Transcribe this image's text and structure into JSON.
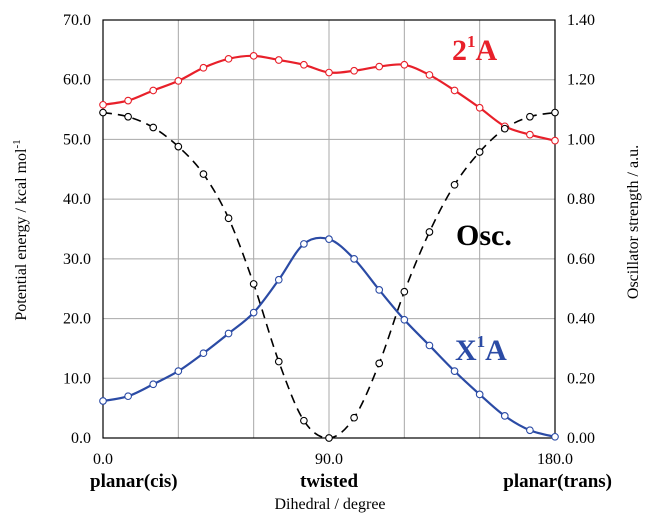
{
  "chart_data": {
    "type": "line",
    "xlabel": "Dihedral / degree",
    "ylabel_left": "Potential energy / kcal mol",
    "ylabel_left_sup": "-1",
    "ylabel_right": "Oscillator strength / a.u.",
    "x_ticks": [
      "0.0",
      "90.0",
      "180.0"
    ],
    "x_tick_values": [
      0,
      90,
      180
    ],
    "x_category_labels": [
      "planar(cis)",
      "twisted",
      "planar(trans)"
    ],
    "xlim": [
      0,
      180
    ],
    "ylim_left": [
      0,
      70
    ],
    "ylim_right": [
      0,
      1.4
    ],
    "y_left_ticks": [
      "0.0",
      "10.0",
      "20.0",
      "30.0",
      "40.0",
      "50.0",
      "60.0",
      "70.0"
    ],
    "y_right_ticks": [
      "0.00",
      "0.20",
      "0.40",
      "0.60",
      "0.80",
      "1.00",
      "1.20",
      "1.40"
    ],
    "grid": true,
    "series": [
      {
        "name": "2",
        "name_sup": "1",
        "name_tail": "A",
        "axis": "left",
        "color": "#e8202a",
        "dashed": false,
        "x": [
          0,
          10,
          20,
          30,
          40,
          50,
          60,
          70,
          80,
          90,
          100,
          110,
          120,
          130,
          140,
          150,
          160,
          170,
          180
        ],
        "y": [
          55.8,
          56.5,
          58.2,
          59.8,
          62.0,
          63.5,
          64.0,
          63.3,
          62.5,
          61.2,
          61.5,
          62.2,
          62.5,
          60.8,
          58.2,
          55.3,
          52.2,
          50.8,
          49.8
        ]
      },
      {
        "name": "Osc.",
        "axis": "right",
        "color": "#000000",
        "dashed": true,
        "x": [
          0,
          10,
          20,
          30,
          40,
          50,
          60,
          70,
          80,
          90,
          100,
          110,
          120,
          130,
          140,
          150,
          160,
          170,
          180
        ],
        "y": [
          1.09,
          1.076,
          1.04,
          0.976,
          0.884,
          0.736,
          0.516,
          0.256,
          0.058,
          0.0,
          0.068,
          0.25,
          0.49,
          0.69,
          0.848,
          0.958,
          1.036,
          1.076,
          1.09
        ]
      },
      {
        "name": "X",
        "name_sup": "1",
        "name_tail": "A",
        "axis": "left",
        "color": "#2b4ba5",
        "dashed": false,
        "x": [
          0,
          10,
          20,
          30,
          40,
          50,
          60,
          70,
          80,
          90,
          100,
          110,
          120,
          130,
          140,
          150,
          160,
          170,
          180
        ],
        "y": [
          6.2,
          7.0,
          9.0,
          11.2,
          14.2,
          17.5,
          21.0,
          26.5,
          32.5,
          33.3,
          30.0,
          24.8,
          19.8,
          15.5,
          11.2,
          7.3,
          3.7,
          1.3,
          0.2
        ]
      }
    ]
  }
}
